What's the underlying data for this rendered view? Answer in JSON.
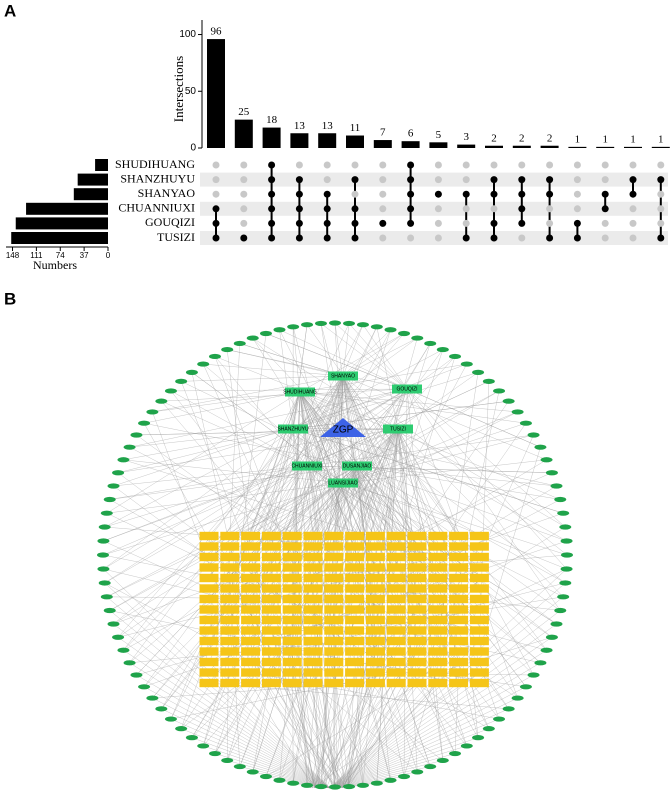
{
  "panels": [
    "A",
    "B"
  ],
  "chart_data": {
    "type": "upset",
    "ylabel": "Intersections",
    "xlabel": "Numbers",
    "sets": [
      "SHUDIHUANG",
      "SHANZHUYU",
      "SHANYAO",
      "CHUANNIUXI",
      "GOUQIZI",
      "TUSIZI"
    ],
    "set_sizes": [
      20,
      47,
      53,
      127,
      143,
      150
    ],
    "set_xlim": [
      155,
      0
    ],
    "set_xticks": [
      148,
      111,
      74,
      37,
      0
    ],
    "values": [
      96,
      25,
      18,
      13,
      13,
      11,
      7,
      6,
      5,
      3,
      2,
      2,
      2,
      1,
      1,
      1,
      1
    ],
    "ylim": [
      0,
      104
    ],
    "yticks": [
      0,
      50,
      100
    ],
    "color": "#000000",
    "inactive_color": "#c8c8c8",
    "matrix": [
      [
        0,
        0,
        0,
        1,
        1,
        1
      ],
      [
        0,
        0,
        0,
        0,
        0,
        1
      ],
      [
        1,
        1,
        1,
        1,
        1,
        1
      ],
      [
        0,
        1,
        1,
        1,
        1,
        1
      ],
      [
        0,
        0,
        1,
        1,
        1,
        1
      ],
      [
        0,
        1,
        0,
        1,
        1,
        1
      ],
      [
        0,
        0,
        0,
        0,
        1,
        0
      ],
      [
        1,
        1,
        1,
        1,
        1,
        0
      ],
      [
        0,
        0,
        1,
        0,
        0,
        0
      ],
      [
        0,
        0,
        1,
        0,
        0,
        1
      ],
      [
        0,
        1,
        1,
        0,
        1,
        1
      ],
      [
        0,
        1,
        1,
        1,
        1,
        0
      ],
      [
        0,
        1,
        1,
        0,
        0,
        1
      ],
      [
        0,
        0,
        0,
        0,
        1,
        1
      ],
      [
        0,
        0,
        1,
        1,
        0,
        0
      ],
      [
        0,
        1,
        1,
        0,
        0,
        0
      ],
      [
        0,
        1,
        0,
        0,
        0,
        1
      ]
    ]
  },
  "network": {
    "center": "ZGP",
    "herbs": [
      "SHANYAO",
      "GOUQIZI",
      "SHUDIHUANG",
      "SHANZHUYU",
      "TUSIZI",
      "CHUANNIUXI",
      "DUSANJIAO",
      "LUANSIJIAO"
    ]
  }
}
